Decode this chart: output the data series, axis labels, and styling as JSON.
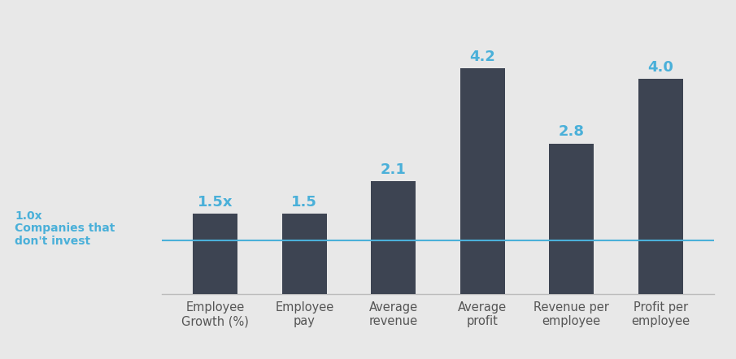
{
  "categories": [
    "Employee\nGrowth (%)",
    "Employee\npay",
    "Average\nrevenue",
    "Average\nprofit",
    "Revenue per\nemployee",
    "Profit per\nemployee"
  ],
  "values": [
    1.5,
    1.5,
    2.1,
    4.2,
    2.8,
    4.0
  ],
  "labels": [
    "1.5x",
    "1.5",
    "2.1",
    "4.2",
    "2.8",
    "4.0"
  ],
  "bar_color": "#3d4452",
  "label_color": "#4ab0d9",
  "reference_line_y": 1.0,
  "reference_line_color": "#4ab0d9",
  "reference_label_line1": "1.0x",
  "reference_label_line2": "Companies that\ndon't invest",
  "reference_label_color": "#4ab0d9",
  "background_color": "#e8e8e8",
  "ylim": [
    0,
    5.0
  ],
  "bar_width": 0.5,
  "label_fontsize": 13,
  "tick_fontsize": 10.5,
  "ref_label_fontsize": 10
}
